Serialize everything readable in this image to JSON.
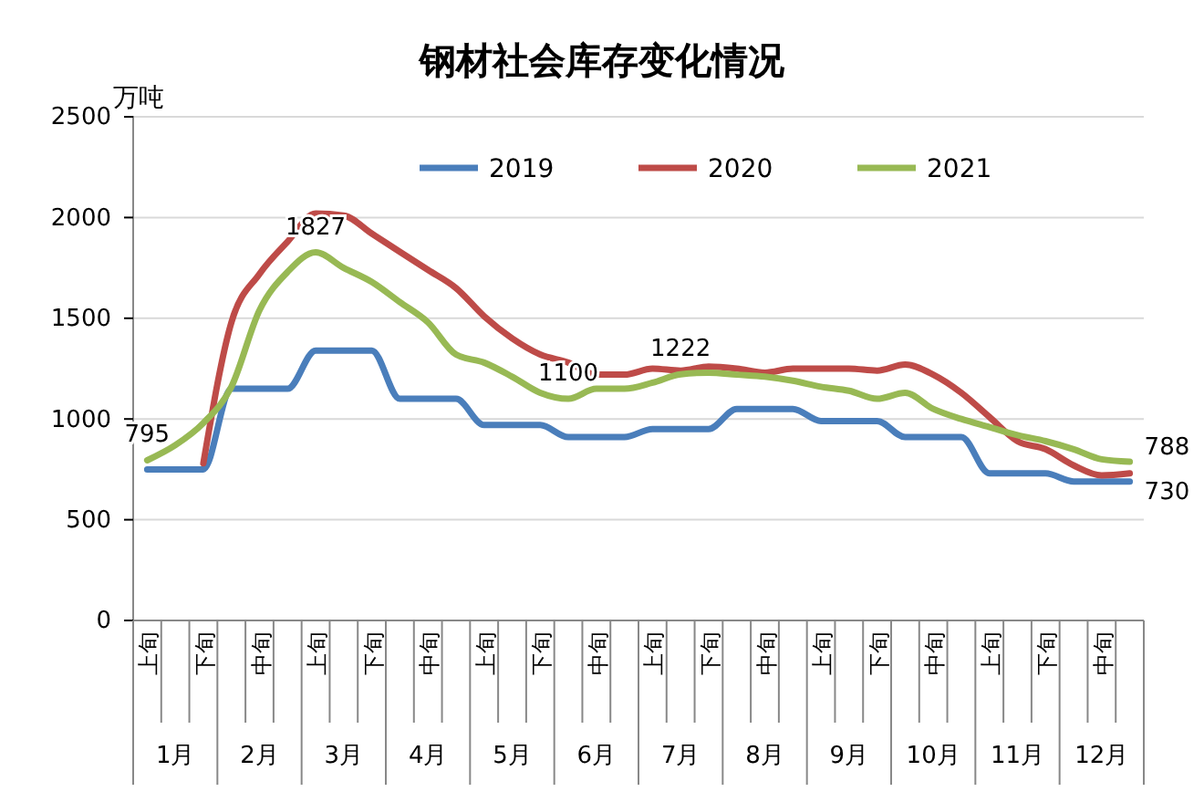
{
  "chart_data": {
    "type": "line",
    "title": "钢材社会库存变化情况",
    "ylabel": "万吨",
    "categories": [
      "上旬",
      null,
      "下旬",
      null,
      "中旬",
      null,
      "上旬",
      null,
      "下旬",
      null,
      "中旬",
      null,
      "上旬",
      null,
      "下旬",
      null,
      "中旬",
      null,
      "上旬",
      null,
      "下旬",
      null,
      "中旬",
      null,
      "上旬",
      null,
      "下旬",
      null,
      "中旬",
      null,
      "上旬",
      null,
      "下旬",
      null,
      "中旬",
      null
    ],
    "annotations": [
      "1月",
      "2月",
      "3月",
      "4月",
      "5月",
      "6月",
      "7月",
      "8月",
      "9月",
      "10月",
      "11月",
      "12月"
    ],
    "series": [
      {
        "name": "2019",
        "color": "#4a7ebb",
        "values": [
          750,
          750,
          750,
          1150,
          1150,
          1150,
          1340,
          1340,
          1340,
          1100,
          1100,
          1100,
          970,
          970,
          970,
          910,
          910,
          910,
          950,
          950,
          950,
          1050,
          1050,
          1050,
          990,
          990,
          990,
          910,
          910,
          910,
          730,
          730,
          730,
          690,
          690,
          690
        ]
      },
      {
        "name": "2020",
        "color": "#be4b48",
        "values": [
          null,
          null,
          780,
          1480,
          1720,
          1880,
          2020,
          2010,
          1920,
          1830,
          1740,
          1650,
          1510,
          1400,
          1320,
          1280,
          1220,
          1220,
          1250,
          1240,
          1260,
          1250,
          1230,
          1250,
          1250,
          1250,
          1240,
          1270,
          1220,
          1130,
          1010,
          890,
          850,
          770,
          720,
          730
        ],
        "value_labels": [
          null,
          null,
          null,
          null,
          null,
          null,
          null,
          null,
          null,
          null,
          null,
          null,
          null,
          null,
          null,
          null,
          null,
          null,
          null,
          null,
          null,
          null,
          null,
          null,
          null,
          null,
          null,
          null,
          null,
          null,
          null,
          null,
          null,
          null,
          null,
          "730"
        ]
      },
      {
        "name": "2021",
        "color": "#98b954",
        "values": [
          795,
          870,
          980,
          1160,
          1540,
          1730,
          1827,
          1750,
          1680,
          1580,
          1480,
          1320,
          1280,
          1210,
          1130,
          1100,
          1150,
          1150,
          1180,
          1222,
          1230,
          1220,
          1210,
          1190,
          1160,
          1140,
          1100,
          1130,
          1050,
          1000,
          960,
          920,
          890,
          850,
          800,
          788
        ],
        "value_labels": [
          "795",
          null,
          null,
          null,
          null,
          null,
          "1827",
          null,
          null,
          null,
          null,
          null,
          null,
          null,
          null,
          "1100",
          null,
          null,
          null,
          "1222",
          null,
          null,
          null,
          null,
          null,
          null,
          null,
          null,
          null,
          null,
          null,
          null,
          null,
          null,
          null,
          "788"
        ]
      }
    ],
    "ylim": [
      0,
      2500
    ],
    "yticks": [
      0,
      500,
      1000,
      1500,
      2000,
      2500
    ],
    "grid": "y",
    "legend": "top",
    "marker": "none",
    "line_style": "solid"
  }
}
